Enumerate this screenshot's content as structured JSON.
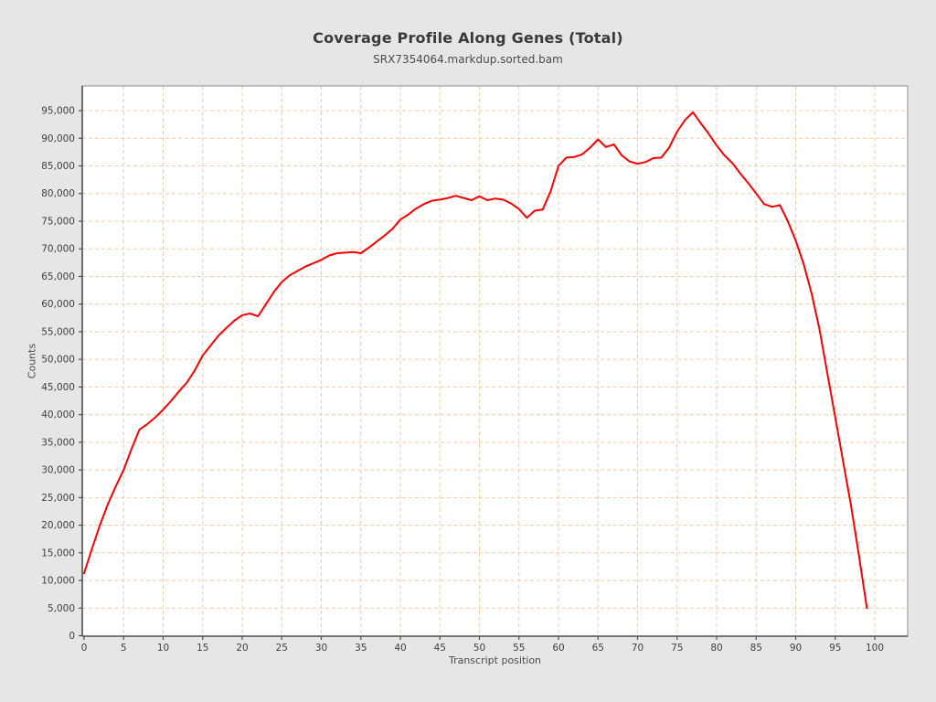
{
  "page": {
    "outer_background": "#e6e6e6"
  },
  "header": {
    "title": "Coverage Profile Along Genes (Total)",
    "subtitle": "SRX7354064.markdup.sorted.bam"
  },
  "chart_data": {
    "type": "line",
    "title": "Coverage Profile Along Genes (Total)",
    "subtitle": "SRX7354064.markdup.sorted.bam",
    "xlabel": "Transcript position",
    "ylabel": "Counts",
    "xlim": [
      0,
      104
    ],
    "ylim": [
      0,
      99500
    ],
    "x_ticks": [
      0,
      5,
      10,
      15,
      20,
      25,
      30,
      35,
      40,
      45,
      50,
      55,
      60,
      65,
      70,
      75,
      80,
      85,
      90,
      95,
      100
    ],
    "y_ticks": [
      0,
      5000,
      10000,
      15000,
      20000,
      25000,
      30000,
      35000,
      40000,
      45000,
      50000,
      55000,
      60000,
      65000,
      70000,
      75000,
      80000,
      85000,
      90000,
      95000
    ],
    "grid": {
      "on": true,
      "color": "#f5cba4",
      "style": "dashed"
    },
    "plot_background": "#ffffff",
    "border_color": "#8c8c8c",
    "axis_color": "#4d4d4d",
    "tick_label_color": "#3f3f3f",
    "series": [
      {
        "name": "SRX7354064.markdup.sorted.bam",
        "color": "#f40000",
        "x_start": 0,
        "x_step": 1,
        "values": [
          11300,
          15800,
          20000,
          23800,
          27000,
          30000,
          33800,
          37300,
          38300,
          39500,
          40900,
          42500,
          44200,
          45800,
          48000,
          50700,
          52500,
          54300,
          55700,
          57000,
          58000,
          58300,
          57800,
          60000,
          62200,
          64000,
          65200,
          66000,
          66800,
          67400,
          68000,
          68800,
          69200,
          69300,
          69400,
          69200,
          70200,
          71300,
          72400,
          73600,
          75300,
          76200,
          77300,
          78100,
          78700,
          78900,
          79200,
          79600,
          79200,
          78800,
          79500,
          78800,
          79100,
          78900,
          78200,
          77200,
          75600,
          76900,
          77100,
          80400,
          85000,
          86500,
          86600,
          87100,
          88300,
          89800,
          88400,
          88900,
          86900,
          85800,
          85400,
          85700,
          86400,
          86500,
          88300,
          91200,
          93300,
          94700,
          92700,
          90800,
          88700,
          86900,
          85500,
          83600,
          81900,
          80000,
          78100,
          77600,
          77900,
          75000,
          71500,
          67300,
          62000,
          55500,
          47500,
          39500,
          31500,
          23500,
          14500,
          5000
        ]
      }
    ],
    "legend": {
      "visible": false
    }
  }
}
